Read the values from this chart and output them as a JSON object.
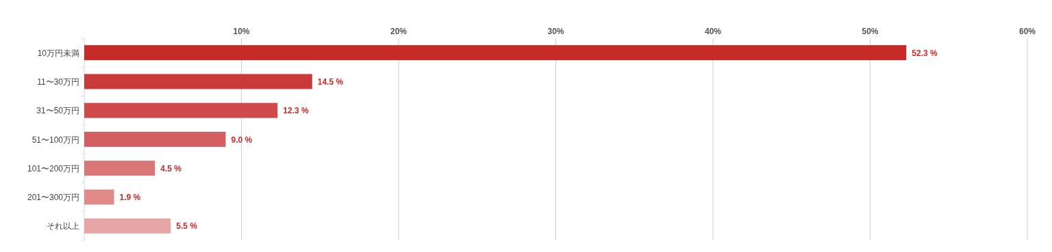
{
  "chart_data": {
    "type": "bar",
    "orientation": "horizontal",
    "categories": [
      "10万円未満",
      "11〜30万円",
      "31〜50万円",
      "51〜100万円",
      "101〜200万円",
      "201〜300万円",
      "それ以上"
    ],
    "values": [
      52.3,
      14.5,
      12.3,
      9.0,
      4.5,
      1.9,
      5.5
    ],
    "colors": [
      "#c62b28",
      "#cb3a3a",
      "#d04a4b",
      "#d45f60",
      "#da7676",
      "#e08a8a",
      "#e8a5a6"
    ],
    "value_labels": [
      "52.3 %",
      "14.5 %",
      "12.3 %",
      "9.0 %",
      "4.5 %",
      "1.9 %",
      "5.5 %"
    ],
    "xlim": [
      0,
      60
    ],
    "xticks": [
      {
        "value": 10,
        "label": "10%"
      },
      {
        "value": 20,
        "label": "20%"
      },
      {
        "value": 30,
        "label": "30%"
      },
      {
        "value": 40,
        "label": "40%"
      },
      {
        "value": 50,
        "label": "50%"
      },
      {
        "value": 60,
        "label": "60%"
      }
    ],
    "grid": "x"
  }
}
